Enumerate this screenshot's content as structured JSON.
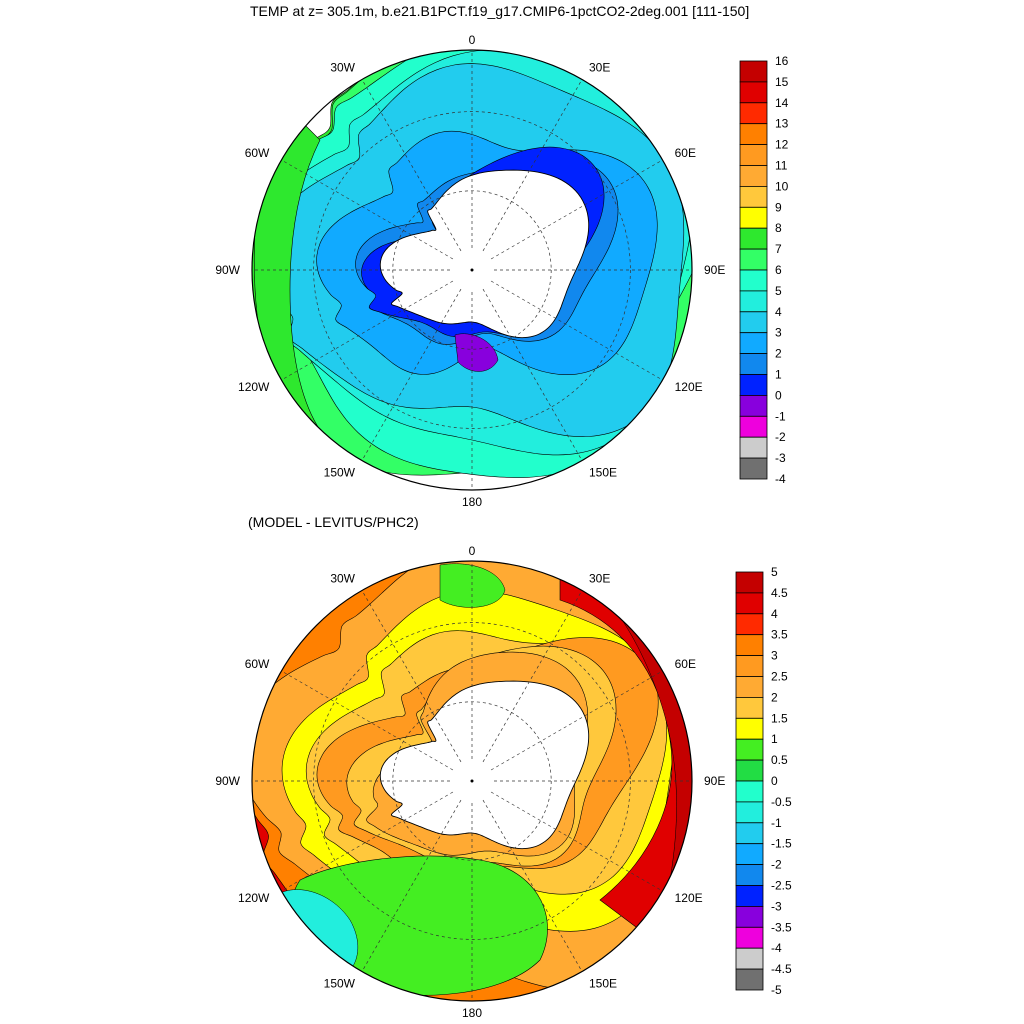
{
  "chart_data": [
    {
      "type": "heatmap",
      "subtype": "polar-stereographic-contour-map",
      "title": "TEMP at z= 305.1m, b.e21.B1PCT.f19_g17.CMIP6-1pctCO2-2deg.001 [111-150]",
      "lon_labels": [
        "0",
        "30E",
        "60E",
        "90E",
        "120E",
        "150E",
        "180",
        "150W",
        "120W",
        "90W",
        "60W",
        "30W"
      ],
      "colorbar_levels": [
        16,
        15,
        14,
        13,
        12,
        11,
        10,
        9,
        8,
        7,
        6,
        5,
        4,
        3,
        2,
        1,
        0,
        -1,
        -2,
        -3,
        -4
      ],
      "colorbar_labels": [
        "16",
        "15",
        "14",
        "13",
        "12",
        "11",
        "10",
        "9",
        "8",
        "7",
        "6",
        "5",
        "4",
        "3",
        "2",
        "1",
        "0",
        "-1",
        "-2",
        "-3",
        "-4"
      ],
      "colorbar_colors": [
        "#c40000",
        "#e00000",
        "#ff2a00",
        "#ff8000",
        "#ff9a20",
        "#ffaa33",
        "#ffc83c",
        "#ffff00",
        "#2ee82e",
        "#33ff66",
        "#22ffcc",
        "#22eedd",
        "#22ccee",
        "#11aaff",
        "#1188ee",
        "#0022ff",
        "#8800dd",
        "#ee00dd",
        "#cccccc",
        "#707070"
      ],
      "grid": true,
      "legend_position": "right"
    },
    {
      "type": "heatmap",
      "subtype": "polar-stereographic-contour-map",
      "title": "(MODEL - LEVITUS/PHC2)",
      "lon_labels": [
        "0",
        "30E",
        "60E",
        "90E",
        "120E",
        "150E",
        "180",
        "150W",
        "120W",
        "90W",
        "60W",
        "30W"
      ],
      "colorbar_levels": [
        5,
        4.5,
        4,
        3.5,
        3,
        2.5,
        2,
        1.5,
        1,
        0.5,
        0,
        -0.5,
        -1,
        -1.5,
        -2,
        -2.5,
        -3,
        -3.5,
        -4,
        -4.5,
        -5
      ],
      "colorbar_labels": [
        "5",
        "4.5",
        "4",
        "3.5",
        "3",
        "2.5",
        "2",
        "1.5",
        "1",
        "0.5",
        "0",
        "-0.5",
        "-1",
        "-1.5",
        "-2",
        "-2.5",
        "-3",
        "-3.5",
        "-4",
        "-4.5",
        "-5"
      ],
      "colorbar_colors": [
        "#c40000",
        "#e00000",
        "#ff2a00",
        "#ff8000",
        "#ff9a20",
        "#ffaa33",
        "#ffc83c",
        "#ffff00",
        "#44ee22",
        "#22dd44",
        "#22ffcc",
        "#22eedd",
        "#22ccee",
        "#11aaff",
        "#1188ee",
        "#0022ff",
        "#8800dd",
        "#ee00dd",
        "#cccccc",
        "#707070"
      ],
      "grid": true,
      "legend_position": "right"
    }
  ]
}
